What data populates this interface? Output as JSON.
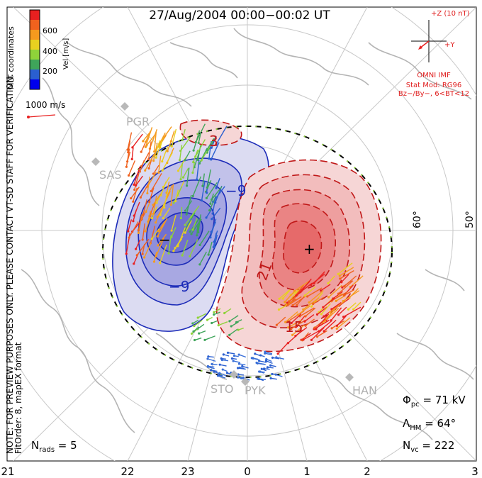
{
  "title": "27/Aug/2004 00:00−00:02 UT",
  "colorbar": {
    "unit_label": "Vel [m/s]",
    "coord_label": "MLT coordinates",
    "tick_labels": [
      "600",
      "400",
      "200"
    ],
    "colors": [
      "#0000ee",
      "#2a5fd0",
      "#3fa55a",
      "#8fd23a",
      "#e8d020",
      "#f59a1e",
      "#f0621e",
      "#e82020"
    ]
  },
  "scale": {
    "label": "1000 m/s"
  },
  "imf": {
    "z_label": "+Z (10 nT)",
    "y_label": "+Y",
    "source": "OMNI IMF",
    "model": "Stat Mod: RG96",
    "condition": "Bz−/By−, 6<BT<12"
  },
  "note": {
    "line1": "NOTE: FOR PREVIEW PURPOSES ONLY. PLEASE CONTACT VT-SD STAFF FOR VERIFICATION.",
    "line2": "FitOrder: 8, mapEX format"
  },
  "stations": [
    "PGR",
    "SAS",
    "STO",
    "PYK",
    "HAN"
  ],
  "contour_labels": {
    "neg_outer": "−3",
    "neg_inner": "−9",
    "neg_inner2": "−9",
    "neg_center": "−",
    "pos_outer": "3",
    "pos_inner": "21",
    "pos_low": "15",
    "pos_center": "+"
  },
  "lat_labels": [
    "60°",
    "50°"
  ],
  "mlt_ticks": [
    "21",
    "22",
    "23",
    "0",
    "1",
    "2",
    "3"
  ],
  "stats": {
    "phi_label": "Φ",
    "phi_sub": "pc",
    "phi_value": " = 71 kV",
    "lambda_label": "Λ",
    "lambda_sub": "HM",
    "lambda_value": " = 64°",
    "nvc_label": "N",
    "nvc_sub": "vc",
    "nvc_value": " = 222",
    "nrads_label": "N",
    "nrads_sub": "rads",
    "nrads_value": " = 5"
  }
}
